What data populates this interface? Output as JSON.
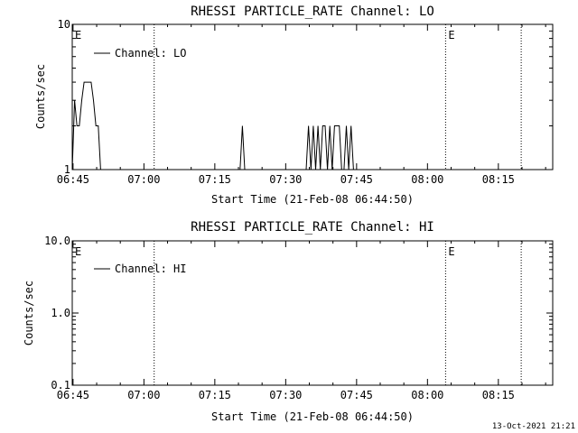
{
  "chart_data": [
    {
      "type": "line",
      "title": "RHESSI PARTICLE_RATE Channel: LO",
      "xlabel": "Start Time (21-Feb-08 06:44:50)",
      "ylabel": "Counts/sec",
      "x_unit": "time of day (HH:MM)",
      "xlim": [
        "06:44:50",
        "08:26:30"
      ],
      "x_ticks": [
        "06:45",
        "07:00",
        "07:15",
        "07:30",
        "07:45",
        "08:00",
        "08:15"
      ],
      "y_scale": "log",
      "ylim": [
        1,
        10
      ],
      "y_ticks": [
        "1",
        "10"
      ],
      "grid": false,
      "legend_position": "top-left",
      "series": [
        {
          "name": "Channel: LO",
          "color": "#000000",
          "x": [
            "06:44:50",
            "06:45:20",
            "06:45:50",
            "06:46:20",
            "06:46:50",
            "06:47:20",
            "06:47:50",
            "06:48:20",
            "06:48:50",
            "06:49:20",
            "06:49:50",
            "06:50:20",
            "06:50:50",
            "06:51:20",
            "07:20:20",
            "07:20:50",
            "07:21:20",
            "07:34:20",
            "07:34:50",
            "07:35:20",
            "07:35:50",
            "07:36:20",
            "07:36:50",
            "07:37:20",
            "07:37:50",
            "07:38:20",
            "07:38:50",
            "07:39:20",
            "07:39:50",
            "07:40:20",
            "07:40:50",
            "07:41:20",
            "07:41:50",
            "07:42:20",
            "07:42:50",
            "07:43:20",
            "07:43:50",
            "07:44:20"
          ],
          "values": [
            1,
            3,
            2,
            2,
            3,
            4,
            4,
            4,
            4,
            3,
            2,
            2,
            1,
            1,
            1,
            2,
            1,
            1,
            2,
            1,
            2,
            1,
            2,
            1,
            2,
            2,
            1,
            2,
            1,
            2,
            2,
            2,
            1,
            1,
            2,
            1,
            2,
            1
          ]
        }
      ],
      "markers": [
        {
          "label": "E",
          "time": "06:44:50"
        },
        {
          "label": "",
          "time": "07:02:10"
        },
        {
          "label": "E",
          "time": "08:03:50"
        },
        {
          "label": "",
          "time": "08:19:50"
        }
      ]
    },
    {
      "type": "line",
      "title": "RHESSI PARTICLE_RATE Channel: HI",
      "xlabel": "Start Time (21-Feb-08 06:44:50)",
      "ylabel": "Counts/sec",
      "x_unit": "time of day (HH:MM)",
      "xlim": [
        "06:44:50",
        "08:26:30"
      ],
      "x_ticks": [
        "06:45",
        "07:00",
        "07:15",
        "07:30",
        "07:45",
        "08:00",
        "08:15"
      ],
      "y_scale": "log",
      "ylim": [
        0.1,
        10
      ],
      "y_ticks": [
        "0.1",
        "1.0",
        "10.0"
      ],
      "grid": false,
      "legend_position": "top-left",
      "series": [
        {
          "name": "Channel: HI",
          "color": "#000000",
          "x": [],
          "values": []
        }
      ],
      "markers": [
        {
          "label": "E",
          "time": "06:44:50"
        },
        {
          "label": "",
          "time": "07:02:10"
        },
        {
          "label": "E",
          "time": "08:03:50"
        },
        {
          "label": "",
          "time": "08:19:50"
        }
      ]
    }
  ],
  "footer": {
    "timestamp": "13-Oct-2021 21:21"
  }
}
